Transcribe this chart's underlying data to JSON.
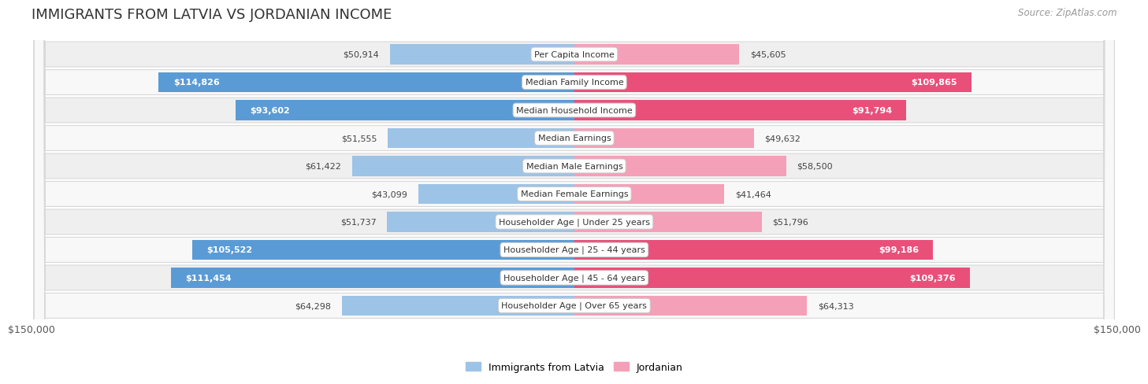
{
  "title": "IMMIGRANTS FROM LATVIA VS JORDANIAN INCOME",
  "source": "Source: ZipAtlas.com",
  "categories": [
    "Per Capita Income",
    "Median Family Income",
    "Median Household Income",
    "Median Earnings",
    "Median Male Earnings",
    "Median Female Earnings",
    "Householder Age | Under 25 years",
    "Householder Age | 25 - 44 years",
    "Householder Age | 45 - 64 years",
    "Householder Age | Over 65 years"
  ],
  "latvia_values": [
    50914,
    114826,
    93602,
    51555,
    61422,
    43099,
    51737,
    105522,
    111454,
    64298
  ],
  "jordanian_values": [
    45605,
    109865,
    91794,
    49632,
    58500,
    41464,
    51796,
    99186,
    109376,
    64313
  ],
  "latvia_color_strong": "#5b9bd5",
  "latvia_color_light": "#9dc3e6",
  "jordanian_color_strong": "#e8507a",
  "jordanian_color_light": "#f4a0b8",
  "latvia_label": "Immigrants from Latvia",
  "jordanian_label": "Jordanian",
  "max_value": 150000,
  "bg_color": "#ffffff",
  "row_bg_odd": "#efefef",
  "row_bg_even": "#f8f8f8",
  "title_fontsize": 13,
  "label_fontsize": 8,
  "value_fontsize": 8,
  "legend_fontsize": 9,
  "axis_label": "$150,000",
  "inside_threshold_latvia": 65000,
  "inside_threshold_jordan": 65000
}
